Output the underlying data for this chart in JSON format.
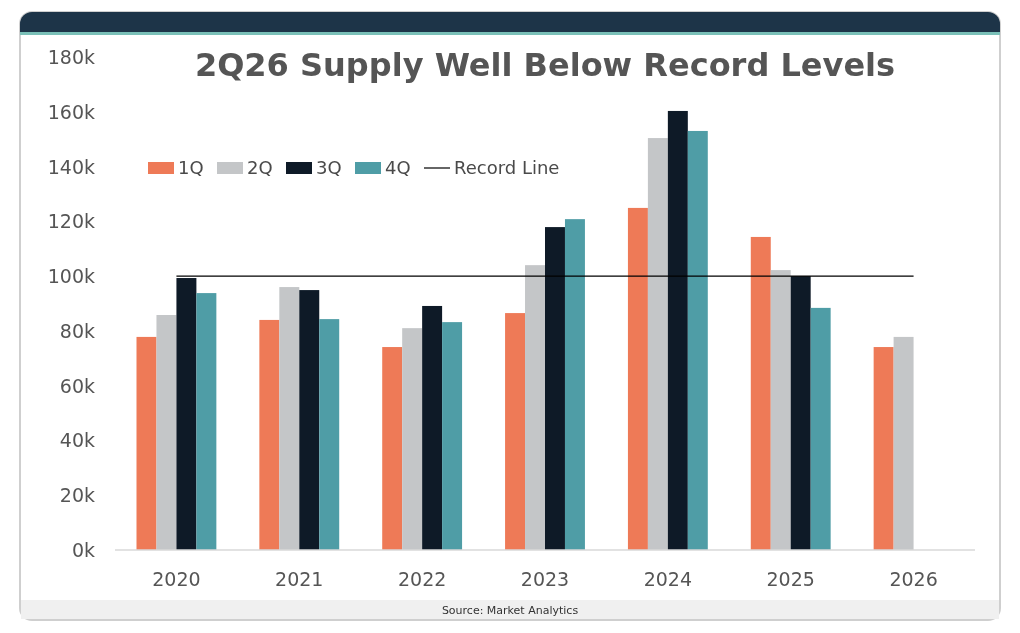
{
  "chart_data": {
    "type": "bar",
    "title": "2Q26 Supply Well Below Record Levels",
    "categories": [
      "2020",
      "2021",
      "2022",
      "2023",
      "2024",
      "2025",
      "2026"
    ],
    "series": [
      {
        "name": "1Q",
        "color": "#ee7a57",
        "values": [
          77800,
          84000,
          74100,
          86500,
          124900,
          114300,
          74100
        ]
      },
      {
        "name": "2Q",
        "color": "#c4c6c8",
        "values": [
          85800,
          96000,
          81000,
          104000,
          150400,
          102200,
          77800
        ]
      },
      {
        "name": "3Q",
        "color": "#0e1a27",
        "values": [
          99300,
          94900,
          89100,
          117900,
          160300,
          100000,
          null
        ]
      },
      {
        "name": "4Q",
        "color": "#4f9da6",
        "values": [
          93800,
          84300,
          83200,
          120800,
          153000,
          88400,
          null
        ]
      }
    ],
    "ylim": [
      0,
      180000
    ],
    "yticks": [
      {
        "value": 0,
        "label": "0k"
      },
      {
        "value": 20000,
        "label": "20k"
      },
      {
        "value": 40000,
        "label": "40k"
      },
      {
        "value": 60000,
        "label": "60k"
      },
      {
        "value": 80000,
        "label": "80k"
      },
      {
        "value": 100000,
        "label": "100k"
      },
      {
        "value": 120000,
        "label": "120k"
      },
      {
        "value": 140000,
        "label": "140k"
      },
      {
        "value": 160000,
        "label": "160k"
      },
      {
        "value": 180000,
        "label": "180k"
      }
    ],
    "ref_lines": [
      {
        "axis": "y",
        "value": 100000,
        "label": "Record Line",
        "color": "#000000"
      }
    ],
    "legend": "top left",
    "grid": false,
    "annotations": [
      "Source: Market Analytics"
    ]
  }
}
